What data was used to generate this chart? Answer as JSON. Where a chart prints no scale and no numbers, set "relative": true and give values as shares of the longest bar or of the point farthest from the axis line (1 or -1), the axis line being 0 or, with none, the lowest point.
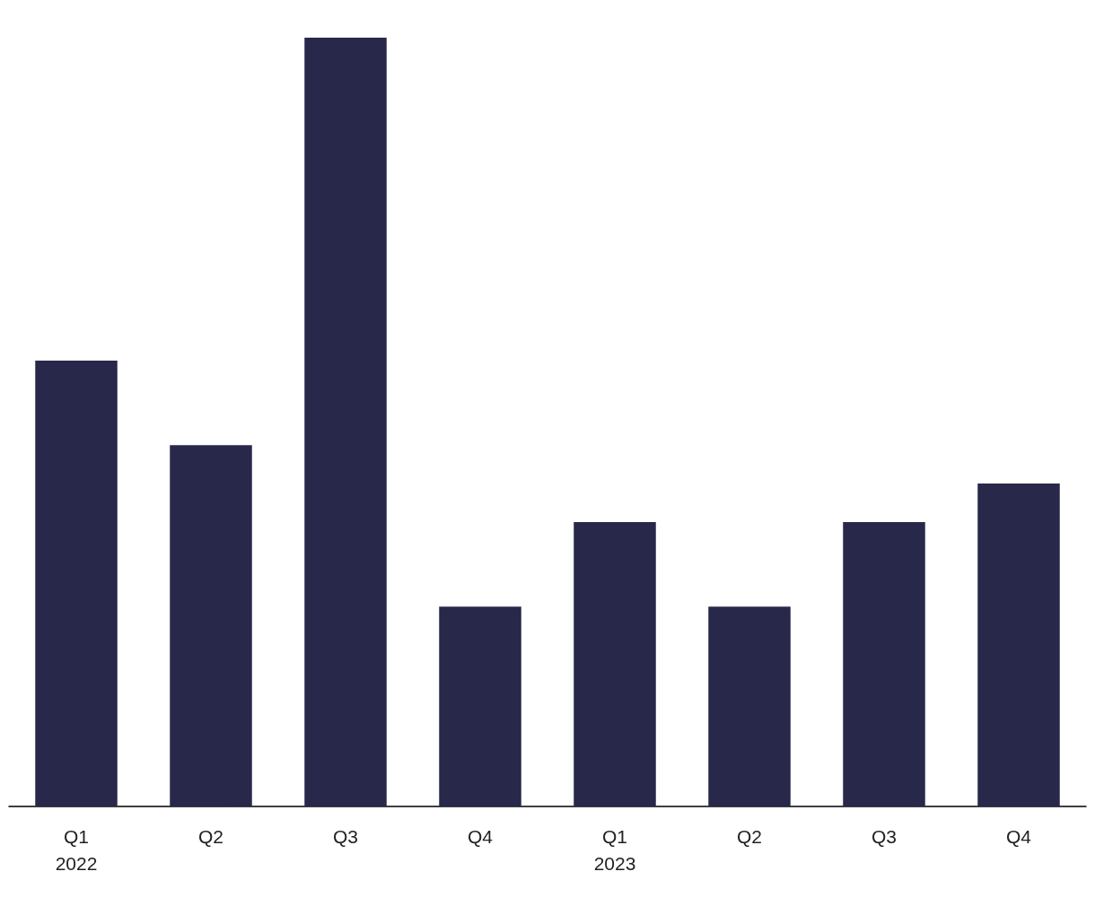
{
  "chart_data": {
    "type": "bar",
    "relative": true,
    "categories": [
      "Q1\n2022",
      "Q2",
      "Q3",
      "Q4",
      "Q1\n2023",
      "Q2",
      "Q3",
      "Q4"
    ],
    "values": [
      0.58,
      0.47,
      1,
      0.26,
      0.37,
      0.26,
      0.37,
      0.42
    ],
    "color": "#28284a"
  }
}
